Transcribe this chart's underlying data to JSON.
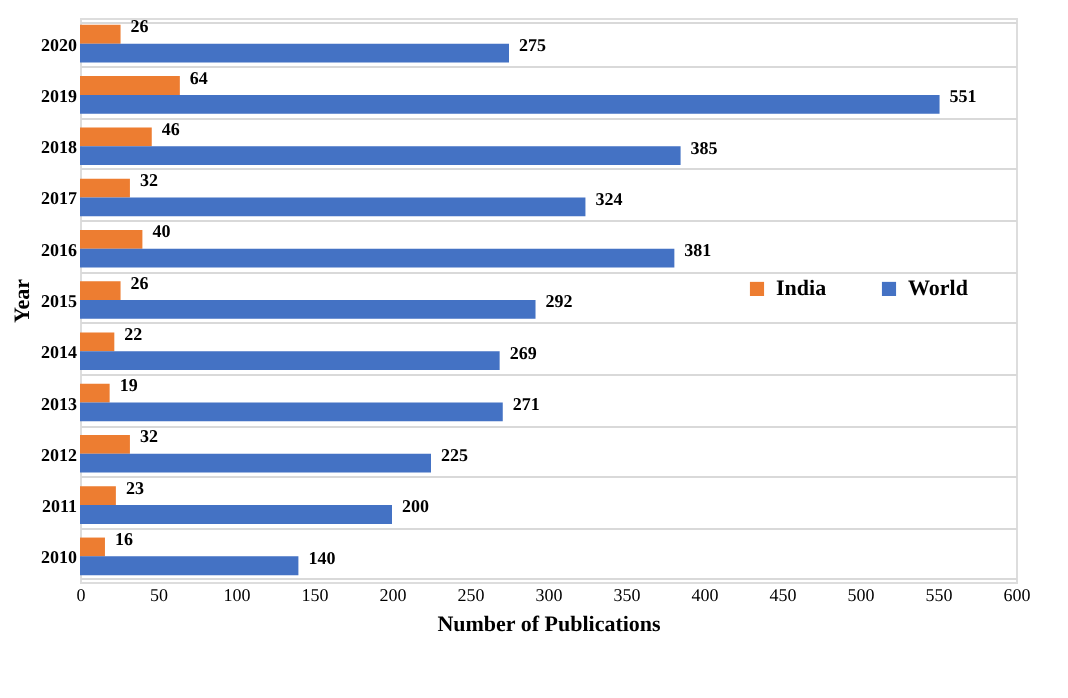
{
  "chart_data": {
    "type": "bar",
    "orientation": "horizontal",
    "xlabel": "Number  of Publications",
    "ylabel": "Year",
    "categories": [
      "2020",
      "2019",
      "2018",
      "2017",
      "2016",
      "2015",
      "2014",
      "2013",
      "2012",
      "2011",
      "2010"
    ],
    "series": [
      {
        "name": "India",
        "color": "#ed7d31",
        "values": [
          26,
          64,
          46,
          32,
          40,
          26,
          22,
          19,
          32,
          23,
          16
        ]
      },
      {
        "name": "World",
        "color": "#4472c4",
        "values": [
          275,
          551,
          385,
          324,
          381,
          292,
          269,
          271,
          225,
          200,
          140
        ]
      }
    ],
    "xlim": [
      0,
      600
    ],
    "xticks": [
      0,
      50,
      100,
      150,
      200,
      250,
      300,
      350,
      400,
      450,
      500,
      550,
      600
    ],
    "grid": "y",
    "legend": "right",
    "data_labels": true
  }
}
